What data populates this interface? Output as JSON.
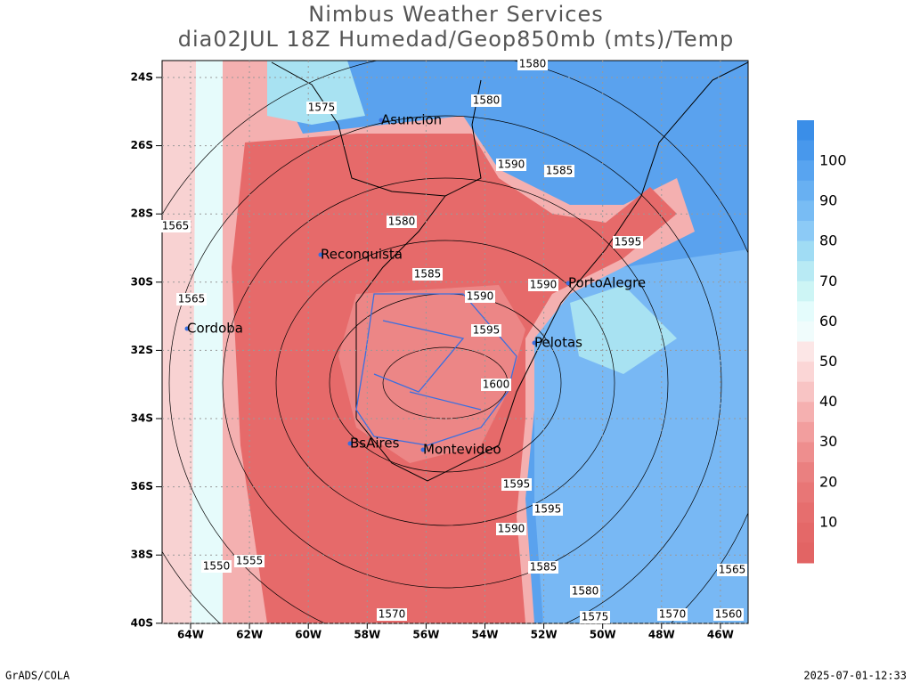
{
  "header": {
    "title": "Nimbus Weather Services",
    "subtitle": "dia02JUL 18Z Humedad/Geop850mb (mts)/Temp"
  },
  "map": {
    "lat_labels": [
      "24S",
      "26S",
      "28S",
      "30S",
      "32S",
      "34S",
      "36S",
      "38S",
      "40S"
    ],
    "lon_labels": [
      "64W",
      "62W",
      "60W",
      "58W",
      "56W",
      "54W",
      "52W",
      "50W",
      "48W",
      "46W"
    ],
    "cities": [
      "Asuncion",
      "Reconquista",
      "Cordoba",
      "PortoAlegre",
      "Pelotas",
      "BsAires",
      "Montevideo"
    ],
    "contour_labels": [
      "1575",
      "1580",
      "1580",
      "1585",
      "1590",
      "1595",
      "1600",
      "1595",
      "1595",
      "1590",
      "1585",
      "1580",
      "1575",
      "1570",
      "1565",
      "1565",
      "1560",
      "1555",
      "1550",
      "1570",
      "1565",
      "1580",
      "1585",
      "1590",
      "1595",
      "1590"
    ]
  },
  "colorbar": {
    "labels": [
      "100",
      "90",
      "80",
      "70",
      "60",
      "50",
      "40",
      "30",
      "20",
      "10"
    ]
  },
  "footer": {
    "left": "GrADS/COLA",
    "right": "2025-07-01-12:33"
  }
}
